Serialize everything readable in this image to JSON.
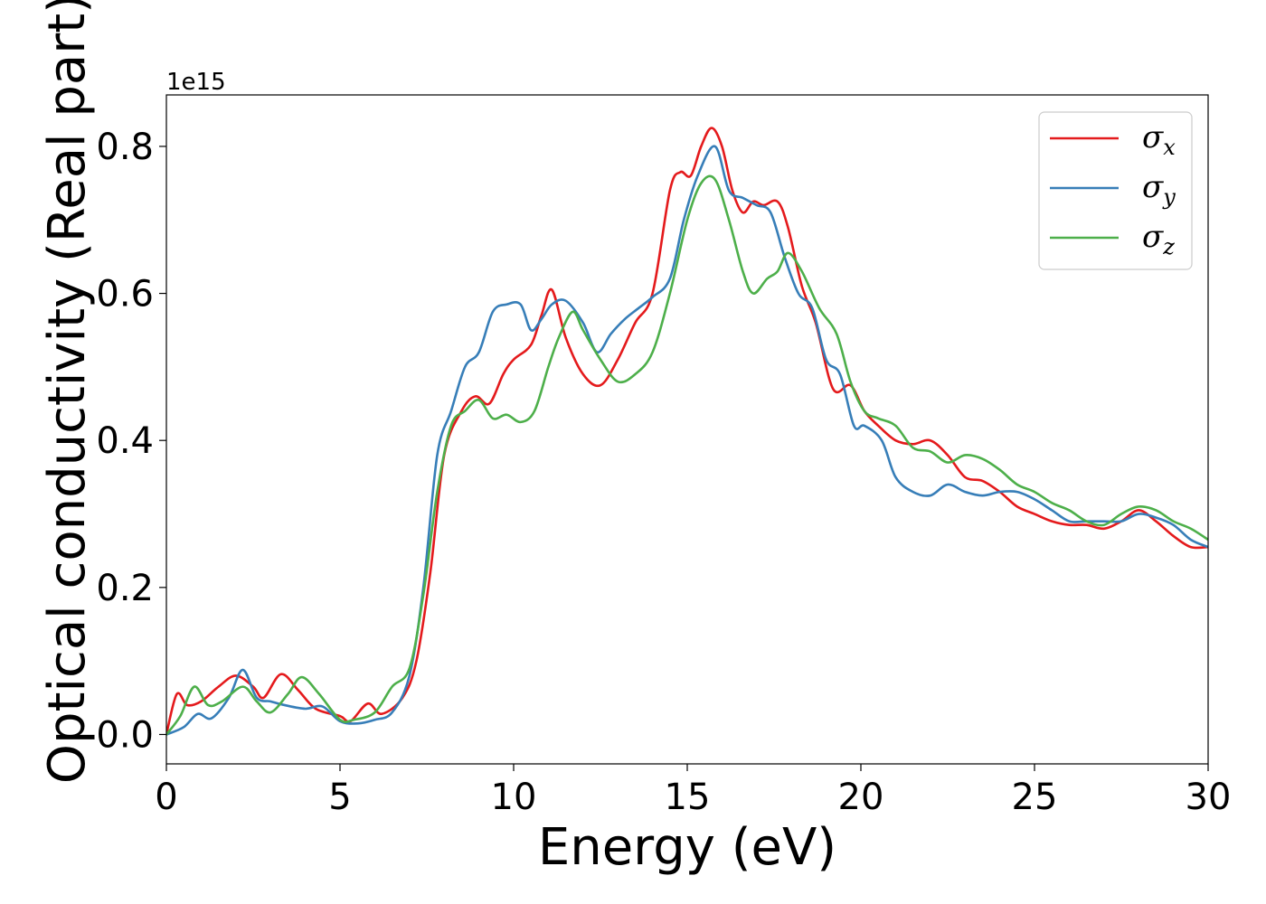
{
  "chart_data": {
    "type": "line",
    "title": "",
    "xlabel": "Energy (eV)",
    "ylabel": "Optical conductivity (Real part)",
    "y_offset_label": "1e15",
    "xlim": [
      0,
      30
    ],
    "ylim": [
      -0.04,
      0.87
    ],
    "xticks": [
      0,
      5,
      10,
      15,
      20,
      25,
      30
    ],
    "yticks": [
      0.0,
      0.2,
      0.4,
      0.6,
      0.8
    ],
    "xtick_labels": [
      "0",
      "5",
      "10",
      "15",
      "20",
      "25",
      "30"
    ],
    "ytick_labels": [
      "0.0",
      "0.2",
      "0.4",
      "0.6",
      "0.8"
    ],
    "grid": false,
    "legend_position": "top-right",
    "series": [
      {
        "name": "σx",
        "legend_symbol": "σ",
        "legend_subscript": "x",
        "color": "#e41a1c",
        "x": [
          0,
          0.3,
          0.6,
          1,
          1.5,
          2,
          2.5,
          2.8,
          3.3,
          3.8,
          4.3,
          5,
          5.3,
          5.8,
          6.2,
          6.8,
          7.2,
          7.6,
          8,
          8.5,
          8.9,
          9.3,
          9.7,
          10,
          10.5,
          10.8,
          11.1,
          11.5,
          12,
          12.5,
          13,
          13.5,
          14,
          14.5,
          14.8,
          15.1,
          15.4,
          15.7,
          16,
          16.3,
          16.6,
          16.9,
          17.2,
          17.6,
          17.9,
          18.3,
          18.7,
          19.2,
          19.7,
          20.1,
          20.5,
          21,
          21.5,
          22,
          22.5,
          23,
          23.5,
          24,
          24.5,
          25,
          25.5,
          26,
          26.5,
          27,
          27.5,
          28,
          28.5,
          29,
          29.5,
          30
        ],
        "values": [
          0.0,
          0.055,
          0.04,
          0.045,
          0.065,
          0.08,
          0.065,
          0.05,
          0.082,
          0.06,
          0.035,
          0.025,
          0.018,
          0.042,
          0.028,
          0.05,
          0.1,
          0.22,
          0.38,
          0.44,
          0.46,
          0.45,
          0.49,
          0.51,
          0.53,
          0.57,
          0.605,
          0.54,
          0.49,
          0.475,
          0.51,
          0.56,
          0.6,
          0.74,
          0.765,
          0.76,
          0.8,
          0.825,
          0.8,
          0.74,
          0.71,
          0.725,
          0.72,
          0.725,
          0.69,
          0.61,
          0.56,
          0.47,
          0.475,
          0.44,
          0.42,
          0.4,
          0.395,
          0.4,
          0.38,
          0.35,
          0.345,
          0.33,
          0.31,
          0.3,
          0.29,
          0.285,
          0.285,
          0.28,
          0.29,
          0.305,
          0.29,
          0.27,
          0.255,
          0.255
        ]
      },
      {
        "name": "σy",
        "legend_symbol": "σ",
        "legend_subscript": "y",
        "color": "#377eb8",
        "x": [
          0,
          0.5,
          0.9,
          1.3,
          1.8,
          2.2,
          2.6,
          3,
          3.4,
          4,
          4.5,
          5,
          5.5,
          6,
          6.5,
          7,
          7.4,
          7.8,
          8.2,
          8.6,
          9,
          9.4,
          9.8,
          10.2,
          10.5,
          10.8,
          11.1,
          11.5,
          12,
          12.4,
          12.8,
          13.2,
          13.6,
          14,
          14.5,
          14.9,
          15.3,
          15.8,
          16.2,
          16.6,
          17,
          17.4,
          17.8,
          18.2,
          18.6,
          19,
          19.4,
          19.8,
          20.1,
          20.6,
          21,
          21.5,
          22,
          22.5,
          23,
          23.5,
          24,
          24.5,
          25,
          25.5,
          26,
          26.5,
          27,
          27.5,
          28,
          28.5,
          29,
          29.5,
          30
        ],
        "values": [
          0.0,
          0.01,
          0.028,
          0.022,
          0.05,
          0.088,
          0.05,
          0.045,
          0.04,
          0.035,
          0.038,
          0.018,
          0.015,
          0.02,
          0.03,
          0.08,
          0.2,
          0.38,
          0.44,
          0.5,
          0.52,
          0.575,
          0.585,
          0.585,
          0.55,
          0.565,
          0.585,
          0.59,
          0.56,
          0.52,
          0.545,
          0.565,
          0.58,
          0.595,
          0.62,
          0.7,
          0.76,
          0.8,
          0.74,
          0.73,
          0.72,
          0.71,
          0.65,
          0.6,
          0.58,
          0.51,
          0.49,
          0.42,
          0.42,
          0.4,
          0.35,
          0.33,
          0.325,
          0.34,
          0.33,
          0.325,
          0.33,
          0.33,
          0.32,
          0.305,
          0.29,
          0.29,
          0.29,
          0.29,
          0.3,
          0.295,
          0.285,
          0.265,
          0.255
        ]
      },
      {
        "name": "σz",
        "legend_symbol": "σ",
        "legend_subscript": "z",
        "color": "#4daf4a",
        "x": [
          0,
          0.4,
          0.8,
          1.2,
          1.6,
          2.2,
          2.6,
          3,
          3.5,
          3.9,
          4.4,
          5,
          5.4,
          6,
          6.5,
          7,
          7.4,
          7.8,
          8.2,
          8.6,
          9,
          9.4,
          9.8,
          10.2,
          10.6,
          11,
          11.3,
          11.7,
          12,
          12.5,
          13,
          13.5,
          14,
          14.5,
          15,
          15.4,
          15.8,
          16.2,
          16.6,
          16.9,
          17.3,
          17.6,
          17.9,
          18.3,
          18.8,
          19.3,
          19.7,
          20.1,
          20.5,
          21,
          21.5,
          22,
          22.5,
          23,
          23.5,
          24,
          24.5,
          25,
          25.5,
          26,
          26.5,
          27,
          27.5,
          28,
          28.5,
          29,
          29.5,
          30
        ],
        "values": [
          0.0,
          0.025,
          0.065,
          0.04,
          0.045,
          0.065,
          0.045,
          0.03,
          0.055,
          0.078,
          0.055,
          0.02,
          0.02,
          0.03,
          0.065,
          0.09,
          0.19,
          0.33,
          0.42,
          0.44,
          0.455,
          0.43,
          0.435,
          0.425,
          0.44,
          0.5,
          0.54,
          0.575,
          0.55,
          0.51,
          0.48,
          0.49,
          0.52,
          0.6,
          0.7,
          0.75,
          0.755,
          0.7,
          0.63,
          0.6,
          0.62,
          0.63,
          0.655,
          0.63,
          0.58,
          0.545,
          0.48,
          0.44,
          0.43,
          0.42,
          0.39,
          0.385,
          0.37,
          0.38,
          0.375,
          0.36,
          0.34,
          0.33,
          0.315,
          0.305,
          0.29,
          0.285,
          0.3,
          0.31,
          0.305,
          0.29,
          0.28,
          0.265
        ]
      }
    ]
  }
}
